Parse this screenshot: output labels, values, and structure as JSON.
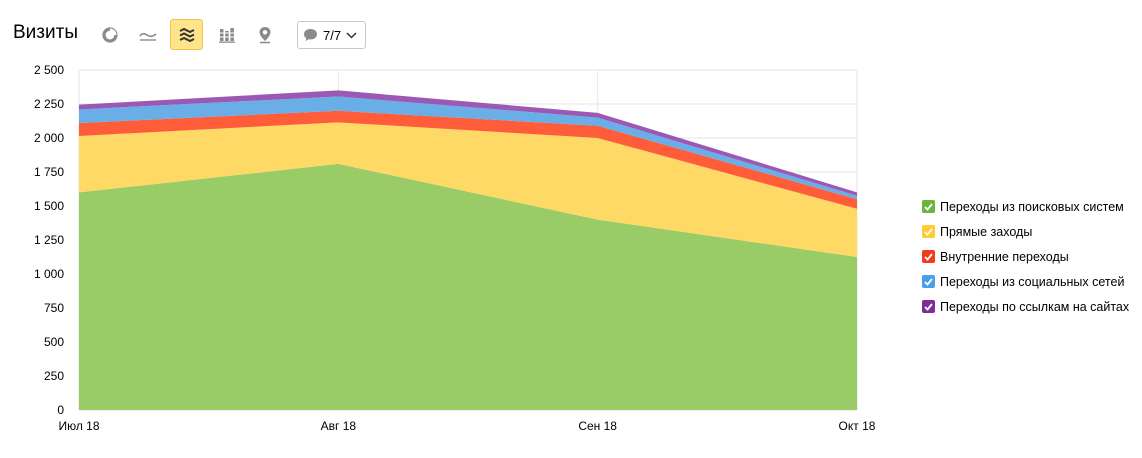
{
  "toolbar": {
    "title": "Визиты",
    "buttons": [
      {
        "icon": "pie-chart-icon",
        "active": false
      },
      {
        "icon": "line-chart-icon",
        "active": false
      },
      {
        "icon": "stacked-area-icon",
        "active": true
      },
      {
        "icon": "bar-chart-icon",
        "active": false
      },
      {
        "icon": "map-pin-icon",
        "active": false
      }
    ],
    "segments_label": "7/7",
    "segments_icon": "comment-bubble-icon"
  },
  "colors": {
    "active_button_bg": "#ffe48a",
    "grid": "#e6e6e6"
  },
  "chart_data": {
    "type": "area",
    "stacked": true,
    "categories": [
      "Июл 18",
      "Авг 18",
      "Сен 18",
      "Окт 18"
    ],
    "ylim": [
      0,
      2500
    ],
    "yticks": [
      0,
      250,
      500,
      750,
      "1 000",
      "1 250",
      "1 500",
      "1 750",
      "2 000",
      "2 250",
      "2 500"
    ],
    "ytick_values": [
      0,
      250,
      500,
      750,
      1000,
      1250,
      1500,
      1750,
      2000,
      2250,
      2500
    ],
    "grid": true,
    "legend_position": "right",
    "series": [
      {
        "name": "Переходы из поисковых систем",
        "color": "#99cc66",
        "legend_color": "#6cb33f",
        "values": [
          1600,
          1810,
          1400,
          1125
        ]
      },
      {
        "name": "Прямые заходы",
        "color": "#ffd966",
        "legend_color": "#ffcc33",
        "values": [
          415,
          305,
          600,
          355
        ]
      },
      {
        "name": "Внутренние переходы",
        "color": "#ff5c3a",
        "legend_color": "#f23c1d",
        "values": [
          95,
          85,
          90,
          70
        ]
      },
      {
        "name": "Переходы из социальных сетей",
        "color": "#6aaee8",
        "legend_color": "#4a9fe6",
        "values": [
          100,
          105,
          60,
          25
        ]
      },
      {
        "name": "Переходы по ссылкам на сайтах",
        "color": "#9b59b6",
        "legend_color": "#7d2e99",
        "values": [
          35,
          45,
          35,
          25
        ]
      }
    ]
  }
}
